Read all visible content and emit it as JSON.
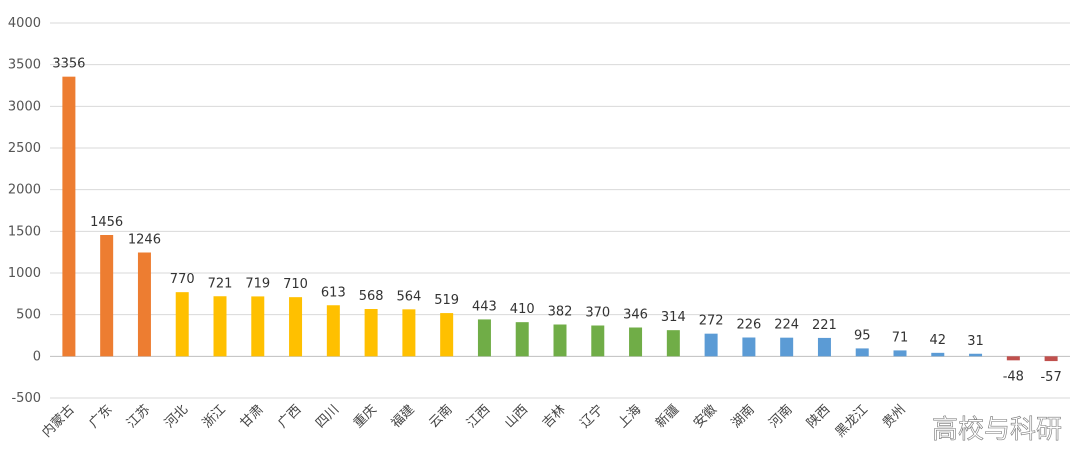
{
  "chart_data": {
    "type": "bar",
    "categories": [
      "内蒙古",
      "广东",
      "江苏",
      "河北",
      "浙江",
      "甘肃",
      "广西",
      "四川",
      "重庆",
      "福建",
      "云南",
      "江西",
      "山西",
      "吉林",
      "辽宁",
      "上海",
      "新疆",
      "安徽",
      "湖南",
      "河南",
      "陕西",
      "黑龙江",
      "贵州",
      "",
      "",
      "",
      ""
    ],
    "values": [
      3356,
      1456,
      1246,
      770,
      721,
      719,
      710,
      613,
      568,
      564,
      519,
      443,
      410,
      382,
      370,
      346,
      314,
      272,
      226,
      224,
      221,
      95,
      71,
      42,
      31,
      -48,
      -57
    ],
    "colors": [
      "#ED7D31",
      "#ED7D31",
      "#ED7D31",
      "#FFC000",
      "#FFC000",
      "#FFC000",
      "#FFC000",
      "#FFC000",
      "#FFC000",
      "#FFC000",
      "#FFC000",
      "#70AD47",
      "#70AD47",
      "#70AD47",
      "#70AD47",
      "#70AD47",
      "#70AD47",
      "#5B9BD5",
      "#5B9BD5",
      "#5B9BD5",
      "#5B9BD5",
      "#5B9BD5",
      "#5B9BD5",
      "#5B9BD5",
      "#5B9BD5",
      "#C0504D",
      "#C0504D"
    ],
    "data_labels": [
      "3356",
      "1456",
      "1246",
      "770",
      "721",
      "719",
      "710",
      "613",
      "568",
      "564",
      "519",
      "443",
      "410",
      "382",
      "370",
      "346",
      "314",
      "272",
      "226",
      "224",
      "221",
      "95",
      "71",
      "42",
      "31",
      "-48",
      "-57"
    ],
    "yticks": [
      -500,
      0,
      500,
      1000,
      1500,
      2000,
      2500,
      3000,
      3500,
      4000
    ],
    "ylim": [
      -500,
      4000
    ],
    "grid": true,
    "title": "",
    "xlabel": "",
    "ylabel": ""
  },
  "watermark": "高校与科研"
}
